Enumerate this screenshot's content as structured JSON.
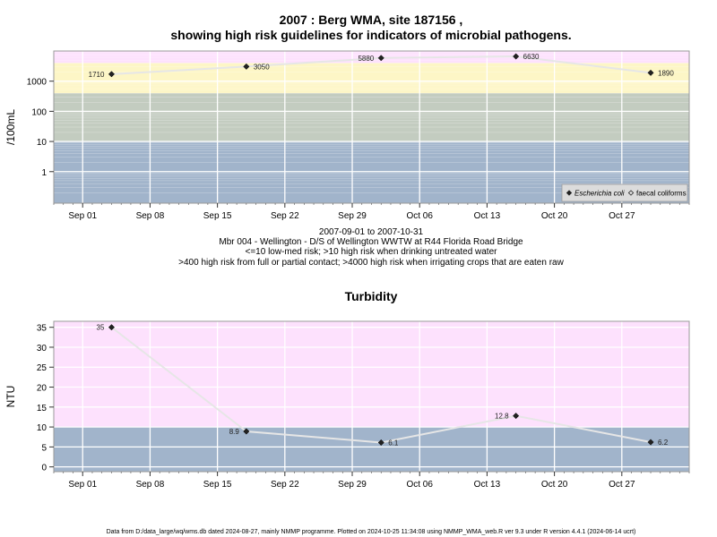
{
  "page": {
    "title_line1": "2007 : Berg WMA, site 187156 ,",
    "title_line2": "showing high risk guidelines for indicators of microbial pathogens.",
    "subtitle_lines": [
      "2007-09-01 to 2007-10-31",
      "Mbr 004 - Wellington - D/S of Wellington WWTW at R44 Florida Road Bridge",
      "<=10 low-med risk; >10 high risk when drinking untreated water",
      ">400 high risk from full or partial contact; >4000 high risk when irrigating crops that are eaten raw"
    ],
    "turbidity_title": "Turbidity",
    "footer": "Data from D:/data_large/wq/wms.db dated 2024-08-27, mainly NMMP programme. Plotted on 2024-10-25 11:34:08 using NMMP_WMA_web.R ver 9.3 under R version 4.4.1 (2024-06-14 ucrt)"
  },
  "colors": {
    "band_blue": "#a1b4cb",
    "band_grey": "#c3ccc0",
    "band_yellow": "#fdf6c6",
    "band_pink": "#fde1fd",
    "grid": "#ffffff",
    "line": "#e6e6e6",
    "point": "#222222"
  },
  "chart_data": [
    {
      "type": "line",
      "title": "2007 : Berg WMA, site 187156 , showing high risk guidelines for indicators of microbial pathogens.",
      "ylabel": "/100mL",
      "y_scale": "log10",
      "ylim": [
        0.09,
        10000
      ],
      "xlim": [
        "2007-08-29",
        "2007-11-03"
      ],
      "x_ticks": [
        "Sep 01",
        "Sep 08",
        "Sep 15",
        "Sep 22",
        "Sep 29",
        "Oct 06",
        "Oct 13",
        "Oct 20",
        "Oct 27"
      ],
      "x_tick_dates": [
        "2007-09-01",
        "2007-09-08",
        "2007-09-15",
        "2007-09-22",
        "2007-09-29",
        "2007-10-06",
        "2007-10-13",
        "2007-10-20",
        "2007-10-27"
      ],
      "y_ticks": [
        "1",
        "10",
        "100",
        "1000"
      ],
      "y_tick_values": [
        1,
        10,
        100,
        1000
      ],
      "bands": [
        {
          "from": 0.09,
          "to": 10,
          "color_key": "band_blue"
        },
        {
          "from": 10,
          "to": 400,
          "color_key": "band_grey"
        },
        {
          "from": 400,
          "to": 4000,
          "color_key": "band_yellow"
        },
        {
          "from": 4000,
          "to": 10000,
          "color_key": "band_pink"
        }
      ],
      "series": [
        {
          "name": "Escherichia coli",
          "x": [
            "2007-09-04",
            "2007-09-18",
            "2007-10-02",
            "2007-10-16",
            "2007-10-30"
          ],
          "values": [
            1710,
            3050,
            5880,
            6630,
            1890
          ],
          "labels": [
            "1710",
            "3050",
            "5880",
            "6630",
            "1890"
          ]
        }
      ],
      "legend": {
        "placement": "bottom-right",
        "entries": [
          {
            "label": "Escherichia coli",
            "marker": "filled-diamond",
            "italic": true
          },
          {
            "label": "faecal coliforms",
            "marker": "open-diamond",
            "italic": false
          }
        ]
      },
      "grid": true
    },
    {
      "type": "line",
      "title": "Turbidity",
      "ylabel": "NTU",
      "ylim": [
        -1.2,
        36.5
      ],
      "xlim": [
        "2007-08-29",
        "2007-11-03"
      ],
      "x_ticks": [
        "Sep 01",
        "Sep 08",
        "Sep 15",
        "Sep 22",
        "Sep 29",
        "Oct 06",
        "Oct 13",
        "Oct 20",
        "Oct 27"
      ],
      "x_tick_dates": [
        "2007-09-01",
        "2007-09-08",
        "2007-09-15",
        "2007-09-22",
        "2007-09-29",
        "2007-10-06",
        "2007-10-13",
        "2007-10-20",
        "2007-10-27"
      ],
      "y_ticks": [
        "0",
        "5",
        "10",
        "15",
        "20",
        "25",
        "30",
        "35"
      ],
      "y_tick_values": [
        0,
        5,
        10,
        15,
        20,
        25,
        30,
        35
      ],
      "bands": [
        {
          "from": -1.2,
          "to": 10,
          "color_key": "band_blue"
        },
        {
          "from": 10,
          "to": 36.5,
          "color_key": "band_pink"
        }
      ],
      "series": [
        {
          "name": "Turbidity",
          "x": [
            "2007-09-04",
            "2007-09-18",
            "2007-10-02",
            "2007-10-16",
            "2007-10-30"
          ],
          "values": [
            35,
            8.9,
            6.1,
            12.8,
            6.2
          ],
          "labels": [
            "35",
            "8.9",
            "6.1",
            "12.8",
            "6.2"
          ]
        }
      ],
      "grid": true
    }
  ]
}
